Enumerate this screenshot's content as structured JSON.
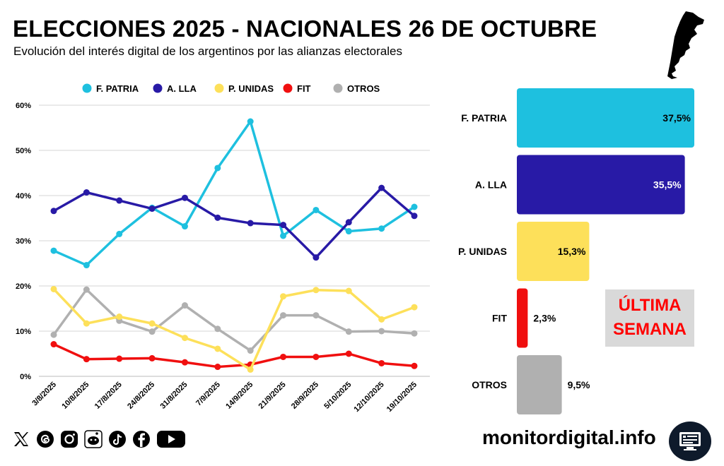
{
  "header": {
    "title": "ELECCIONES 2025 - NACIONALES 26 DE OCTUBRE",
    "subtitle": "Evolución del interés digital de los argentinos por las alianzas electorales"
  },
  "colors": {
    "fpatria": "#1ec0df",
    "alla": "#281aa6",
    "punidas": "#fde05a",
    "fit": "#f00f0f",
    "otros": "#b0b0b0"
  },
  "chart_data": [
    {
      "type": "line",
      "legend_position": "top",
      "x": [
        "3/8/2025",
        "10/8/2025",
        "17/8/2025",
        "24/8/2025",
        "31/8/2025",
        "7/9/2025",
        "14/9/2025",
        "21/9/2025",
        "28/9/2025",
        "5/10/2025",
        "12/10/2025",
        "19/10/2025"
      ],
      "ylim": [
        0,
        60
      ],
      "yticks": [
        "0%",
        "10%",
        "20%",
        "30%",
        "40%",
        "50%",
        "60%"
      ],
      "grid": true,
      "series": [
        {
          "name": "F. PATRIA",
          "color": "#1ec0df",
          "values": [
            27.8,
            24.6,
            31.5,
            37.3,
            33.2,
            46.1,
            56.4,
            31.1,
            36.8,
            32.1,
            32.7,
            37.5
          ]
        },
        {
          "name": "A. LLA",
          "color": "#281aa6",
          "values": [
            36.6,
            40.7,
            38.9,
            37.1,
            39.5,
            35.1,
            33.9,
            33.5,
            26.3,
            34.1,
            41.7,
            35.5
          ]
        },
        {
          "name": "P. UNIDAS",
          "color": "#fde05a",
          "values": [
            19.3,
            11.7,
            13.2,
            11.7,
            8.5,
            6.1,
            1.5,
            17.7,
            19.1,
            18.9,
            12.6,
            15.3
          ]
        },
        {
          "name": "FIT",
          "color": "#f00f0f",
          "values": [
            7.1,
            3.8,
            3.9,
            4.0,
            3.1,
            2.1,
            2.6,
            4.3,
            4.3,
            5.0,
            2.9,
            2.3
          ]
        },
        {
          "name": "OTROS",
          "color": "#b0b0b0",
          "values": [
            9.2,
            19.2,
            12.3,
            9.9,
            15.7,
            10.5,
            5.7,
            13.5,
            13.5,
            9.9,
            10.0,
            9.5
          ]
        }
      ]
    },
    {
      "type": "bar",
      "orientation": "horizontal",
      "categories": [
        "F. PATRIA",
        "A. LLA",
        "P. UNIDAS",
        "FIT",
        "OTROS"
      ],
      "values": [
        37.5,
        35.5,
        15.3,
        2.3,
        9.5
      ],
      "labels": [
        "37,5%",
        "35,5%",
        "15,3%",
        "2,3%",
        "9,5%"
      ],
      "colors": [
        "#1ec0df",
        "#281aa6",
        "#fde05a",
        "#f00f0f",
        "#b0b0b0"
      ],
      "label_colors": [
        "#000000",
        "#ffffff",
        "#000000",
        "#000000",
        "#000000"
      ]
    }
  ],
  "callout": {
    "line1": "ÚLTIMA",
    "line2": "SEMANA"
  },
  "footer": {
    "site": "monitordigital.info",
    "social_icons": [
      "x-icon",
      "threads-icon",
      "instagram-icon",
      "reddit-icon",
      "tiktok-icon",
      "facebook-icon",
      "youtube-icon"
    ]
  }
}
